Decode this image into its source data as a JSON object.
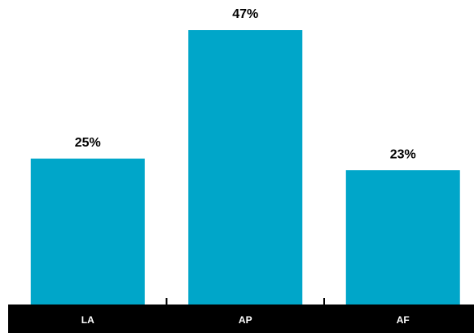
{
  "chart_data": {
    "type": "bar",
    "categories": [
      "LA",
      "AP",
      "AF"
    ],
    "values": [
      25,
      47,
      23
    ],
    "value_labels": [
      "25%",
      "47%",
      "23%"
    ],
    "color": "#00a6c9"
  }
}
